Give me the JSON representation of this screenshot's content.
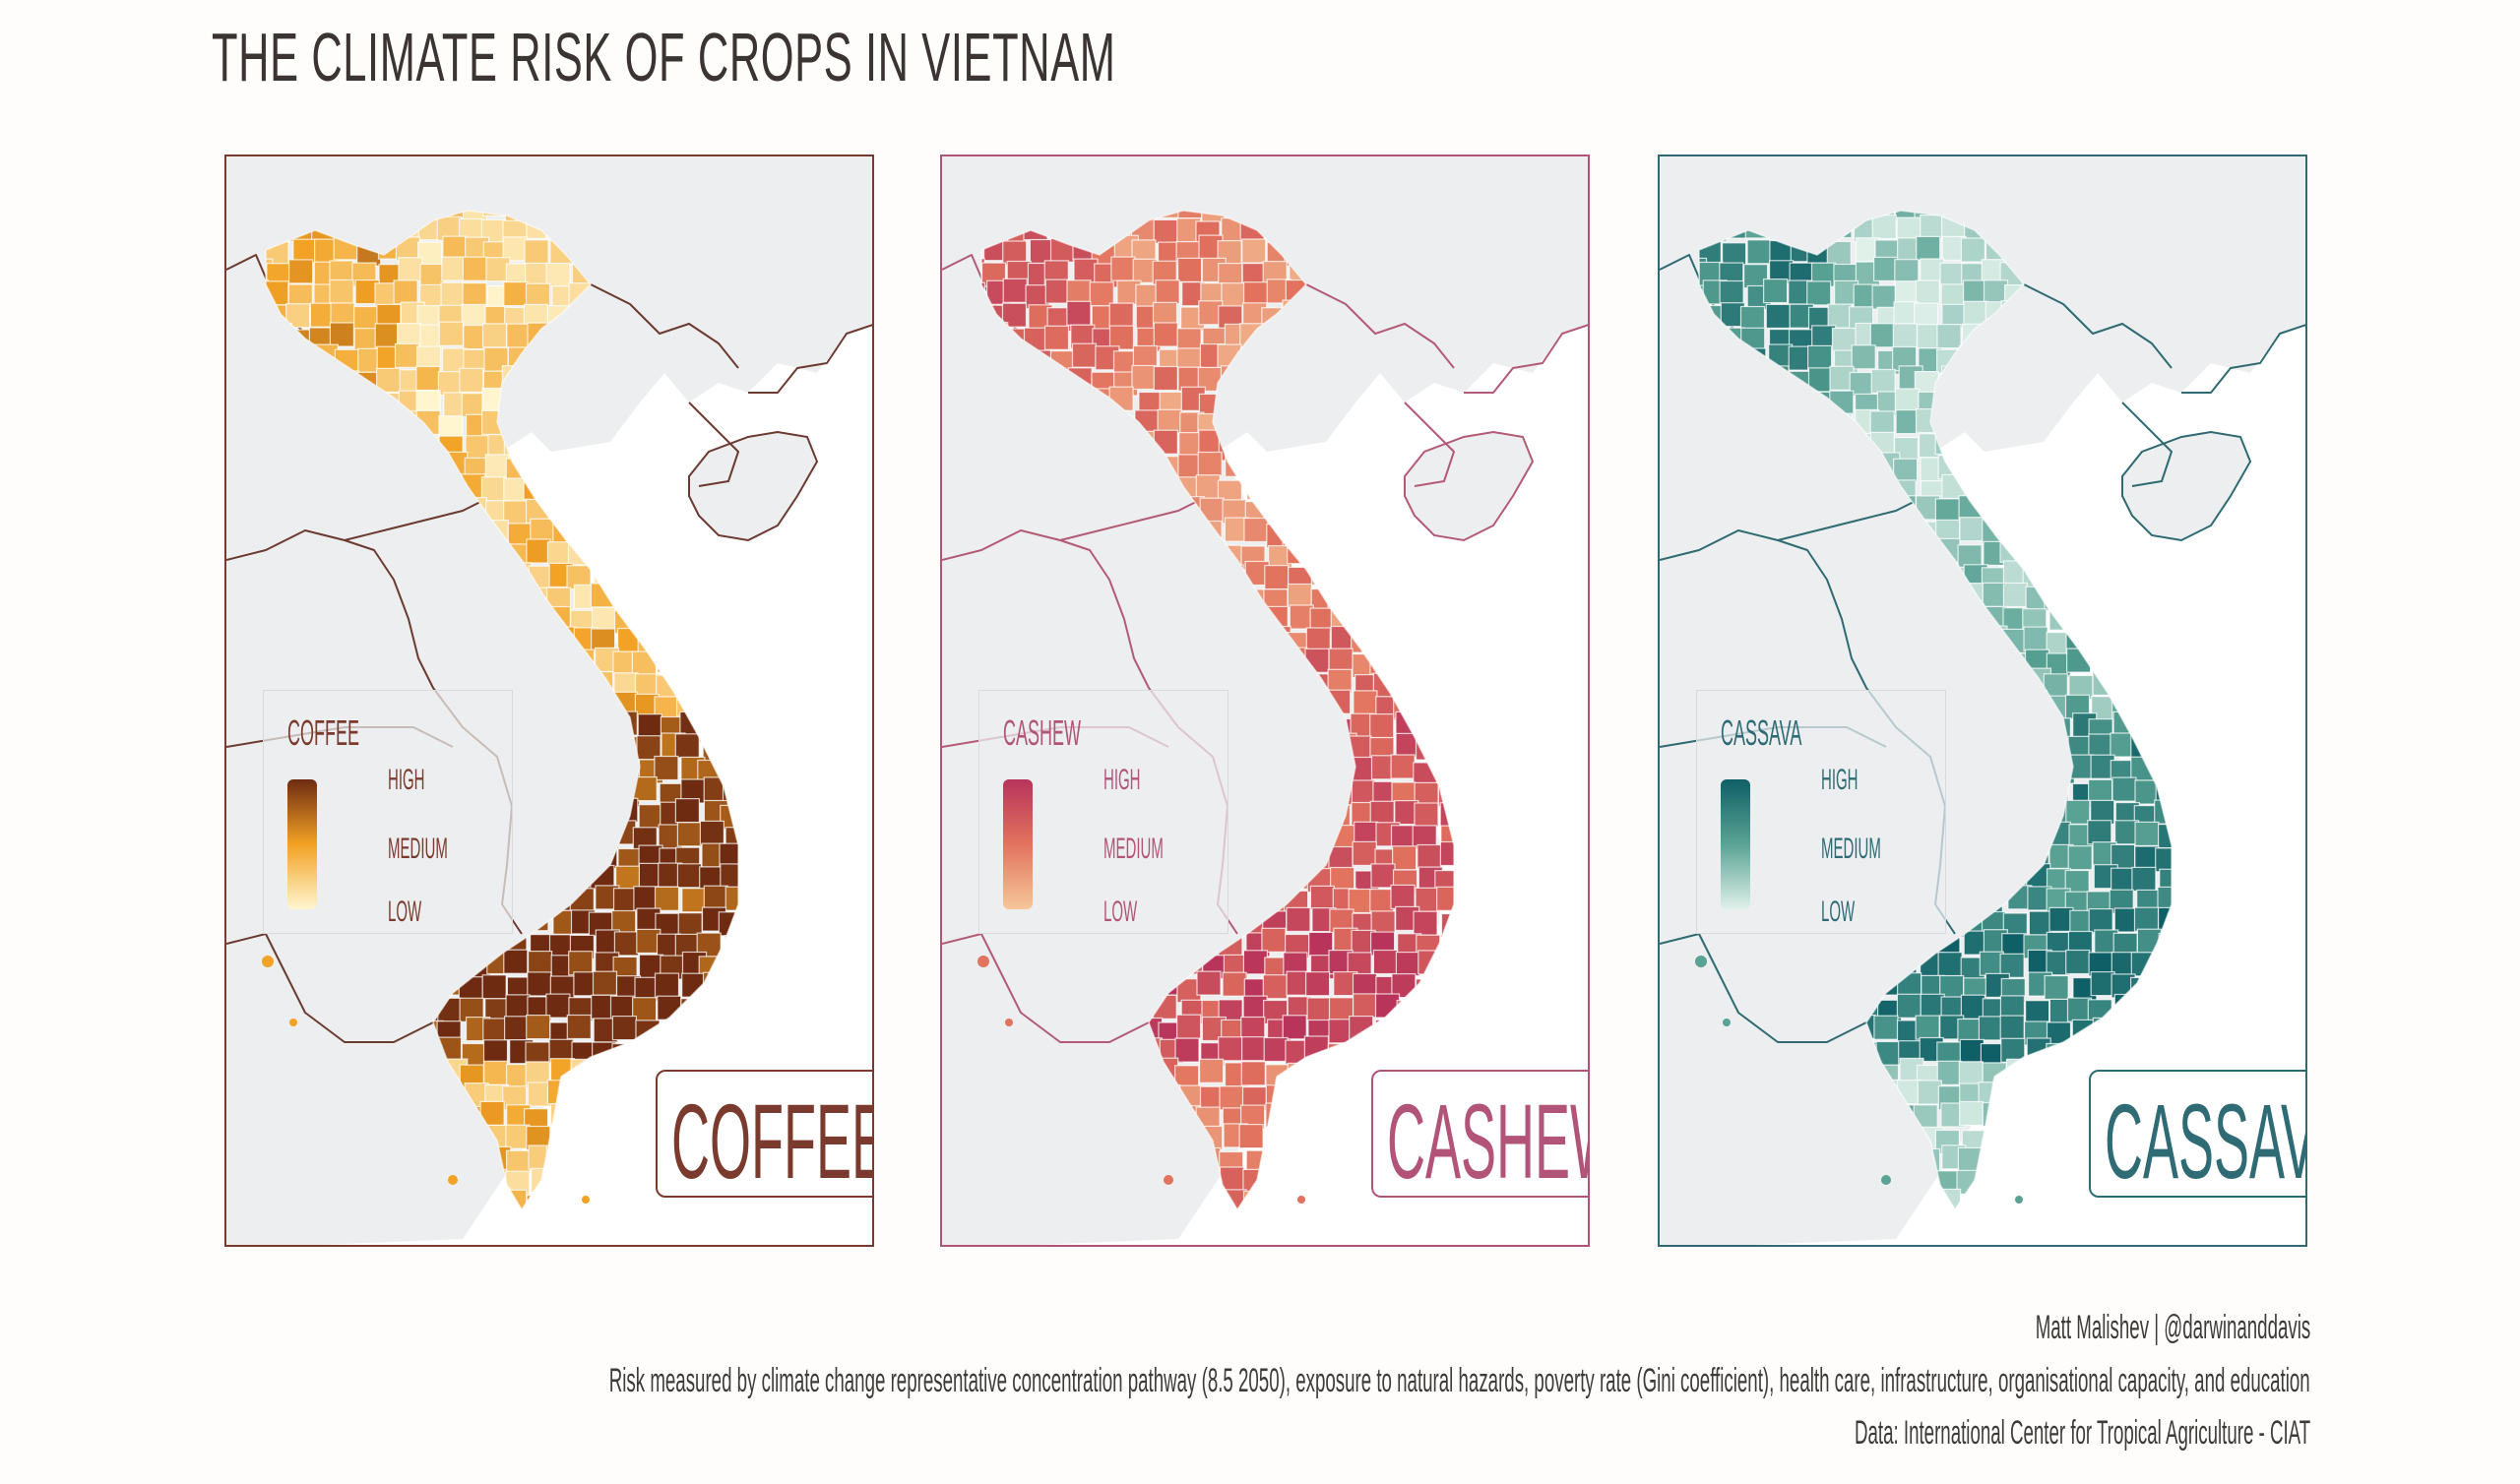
{
  "title": "THE CLIMATE RISK OF CROPS IN VIETNAM",
  "legend_levels": {
    "high": "HIGH",
    "medium": "MEDIUM",
    "low": "LOW"
  },
  "panels": [
    {
      "crop": "COFFEE",
      "legend_title": "COFFEE",
      "colors": {
        "frame": "#7a3b2e",
        "low": "#fff6d0",
        "mid": "#f2a224",
        "high": "#6e2b12",
        "boundary": "#6b3a30"
      }
    },
    {
      "crop": "CASHEW",
      "legend_title": "CASHEW",
      "colors": {
        "frame": "#b25478",
        "low": "#f6c79a",
        "mid": "#e2735e",
        "high": "#b8345b",
        "boundary": "#b35a76"
      }
    },
    {
      "crop": "CASSAVA",
      "legend_title": "CASSAVA",
      "colors": {
        "frame": "#2e6b75",
        "low": "#e0f1ea",
        "mid": "#5aa394",
        "high": "#0f5f66",
        "boundary": "#2f6a72"
      }
    }
  ],
  "footer": {
    "author": "Matt Malishev | @darwinanddavis",
    "note": "Risk measured by climate change representative concentration pathway (8.5 2050), exposure to natural hazards, poverty rate (Gini coefficient), health care, infrastructure, organisational capacity, and education",
    "source": "Data: International Center for Tropical Agriculture - CIAT"
  }
}
